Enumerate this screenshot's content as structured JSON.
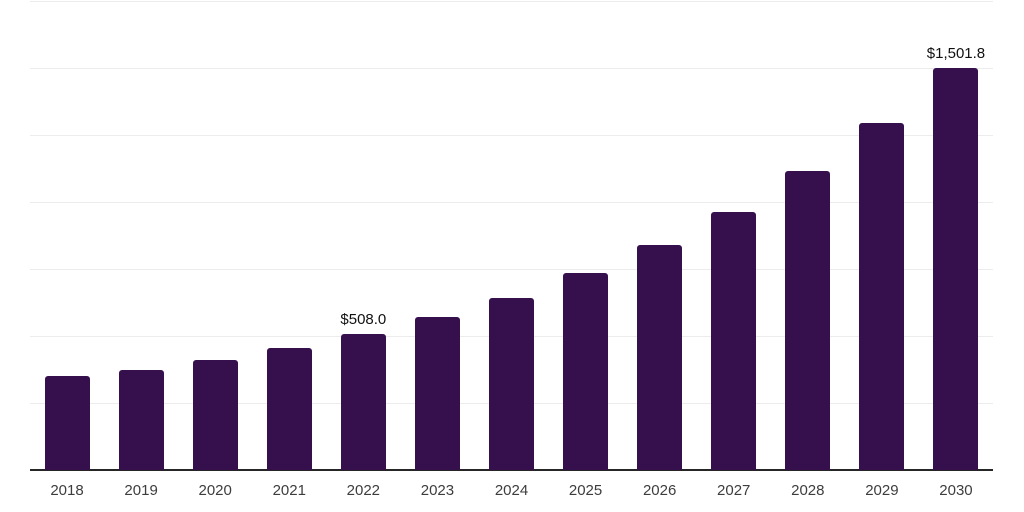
{
  "chart_data": {
    "type": "bar",
    "title": "",
    "xlabel": "",
    "ylabel": "",
    "categories": [
      "2018",
      "2019",
      "2020",
      "2021",
      "2022",
      "2023",
      "2024",
      "2025",
      "2026",
      "2027",
      "2028",
      "2029",
      "2030"
    ],
    "values": [
      351,
      373,
      410,
      455,
      508.0,
      571,
      642,
      735,
      840,
      963,
      1116,
      1295,
      1501.8
    ],
    "data_labels": {
      "2022": "$508.0",
      "2030": "$1,501.8"
    },
    "ylim": [
      0,
      1750
    ],
    "gridline_step": 250,
    "grid": "horizontal-only",
    "y_tick_labels_visible": false,
    "legend": "none",
    "colors": {
      "bar": "#36104D",
      "gridline": "#ececec",
      "axis_line": "#262626",
      "tick_label": "#3d3d3d",
      "value_label": "#111111",
      "background": "#ffffff"
    }
  }
}
